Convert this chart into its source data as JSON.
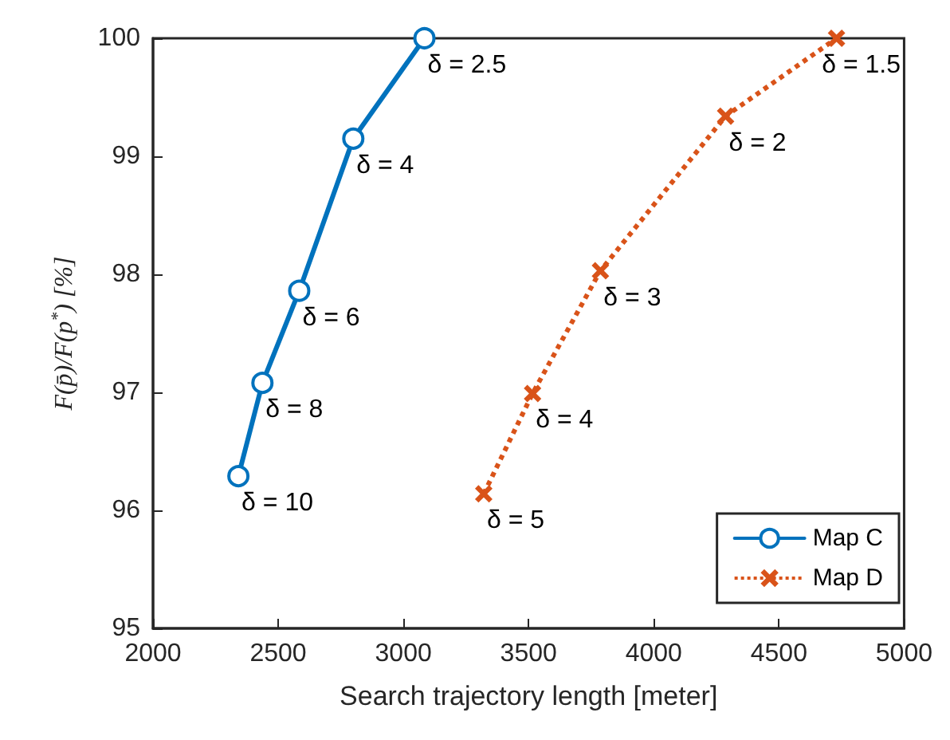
{
  "chart_data": {
    "type": "line",
    "xlabel": "Search trajectory length [meter]",
    "ylabel": "F(p̄)/F(p$^{*}$) [%]",
    "xlim": [
      2000,
      5000
    ],
    "xticks": [
      2000,
      2500,
      3000,
      3500,
      4000,
      4500,
      5000
    ],
    "ylim": [
      95,
      100
    ],
    "yticks": [
      95,
      96,
      97,
      98,
      99,
      100
    ],
    "grid": false,
    "legend": "bottom right",
    "series": [
      {
        "name": "Map C",
        "color": "#0072bd",
        "marker": "circle",
        "line_style": "solid",
        "x": [
          2341,
          2437,
          2584,
          2800,
          3084
        ],
        "values": [
          96.29,
          97.08,
          97.86,
          99.15,
          100
        ]
      },
      {
        "name": "Map D",
        "color": "#d95319",
        "marker": "cross",
        "line_style": "dotted",
        "x": [
          3321,
          3516,
          3787,
          4287,
          4730
        ],
        "values": [
          96.14,
          96.99,
          98.03,
          99.34,
          100
        ]
      }
    ],
    "annotations": [
      {
        "text": "δ = 10",
        "x": 2341,
        "y": 96.29
      },
      {
        "text": "δ = 8",
        "x": 2437,
        "y": 97.08
      },
      {
        "text": "δ = 6",
        "x": 2584,
        "y": 97.86
      },
      {
        "text": "δ = 4",
        "x": 2800,
        "y": 99.15
      },
      {
        "text": "δ = 2.5",
        "x": 3084,
        "y": 100
      },
      {
        "text": "δ = 5",
        "x": 3321,
        "y": 96.14
      },
      {
        "text": "δ = 4",
        "x": 3516,
        "y": 96.99
      },
      {
        "text": "δ = 3",
        "x": 3787,
        "y": 98.03
      },
      {
        "text": "δ = 2",
        "x": 4287,
        "y": 99.34
      },
      {
        "text": "δ = 1.5",
        "x": 4730,
        "y": 100
      }
    ]
  }
}
